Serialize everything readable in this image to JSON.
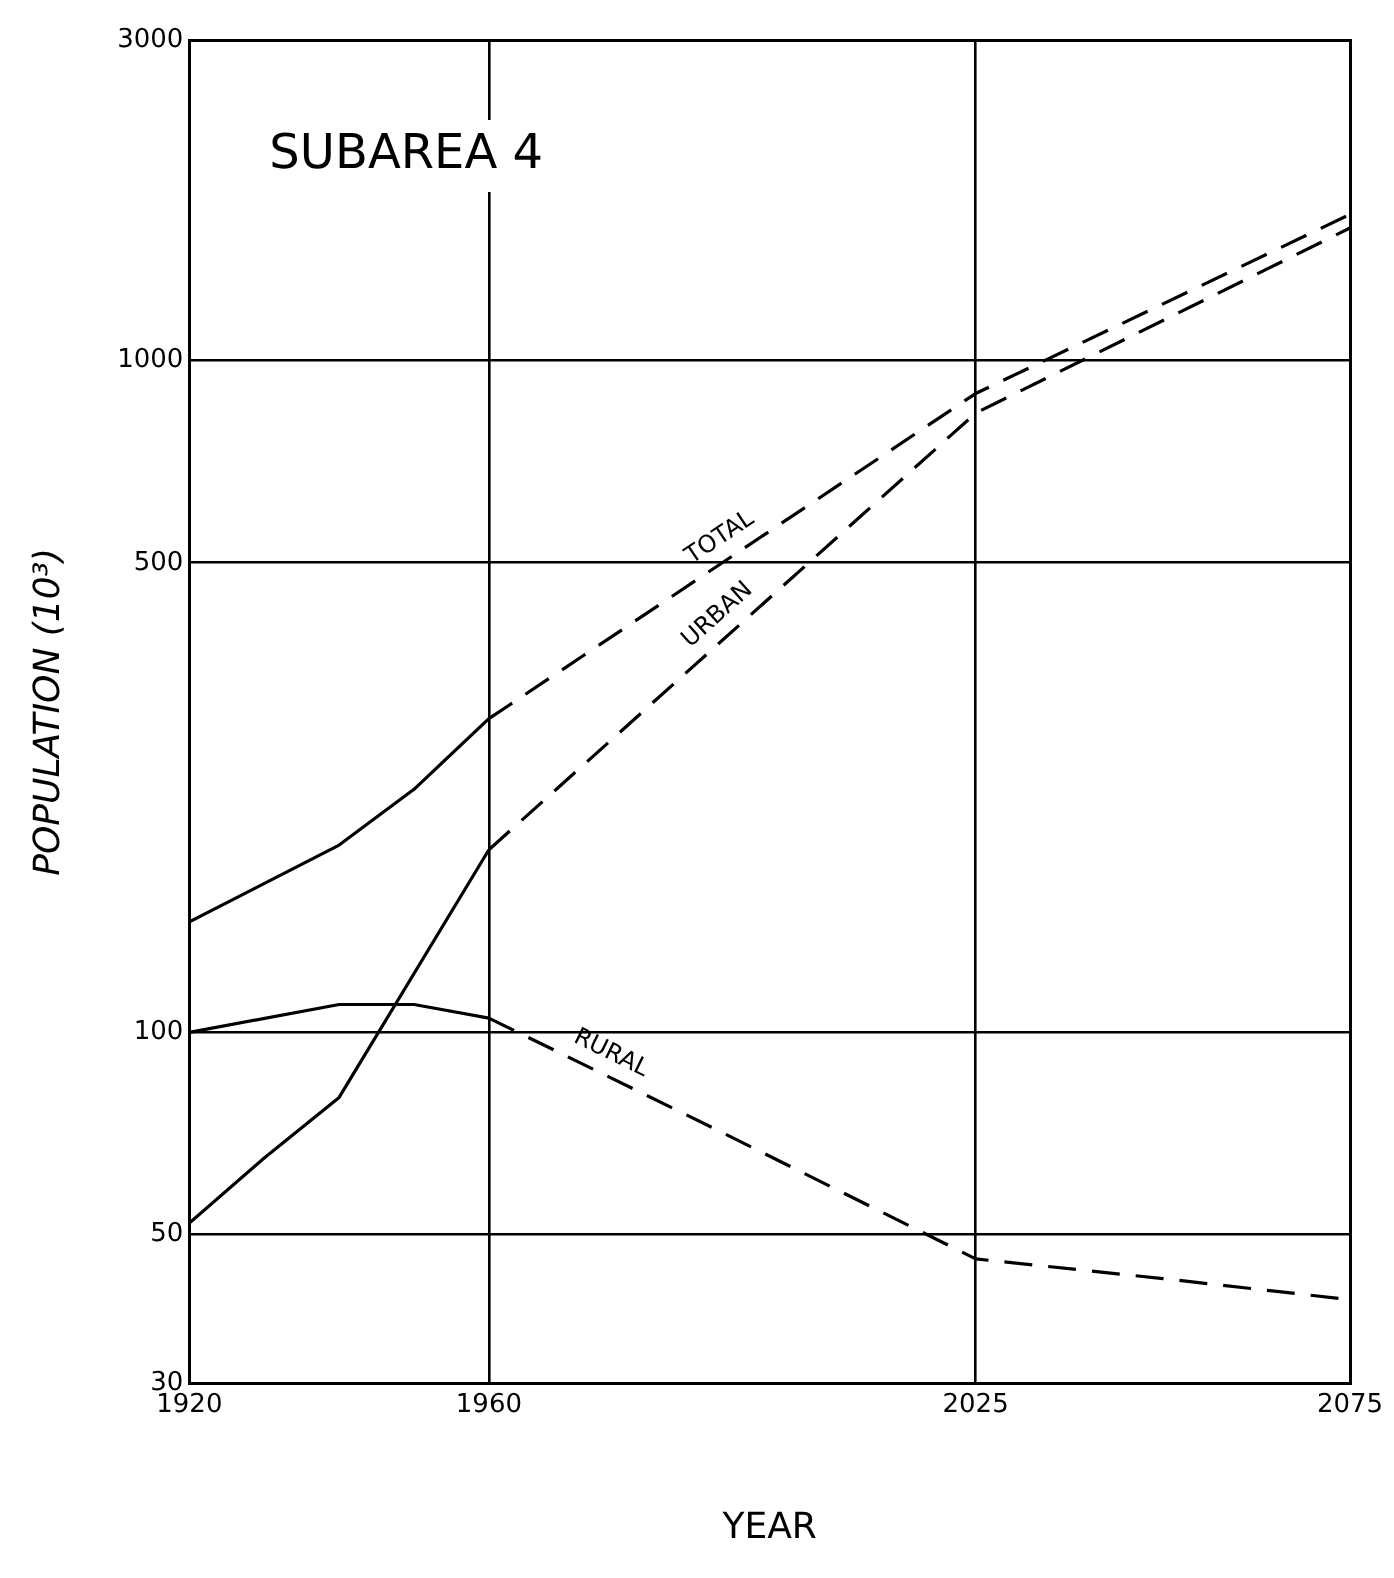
{
  "chart_data": {
    "type": "line",
    "title": "SUBAREA 4",
    "xlabel": "YEAR",
    "ylabel": "POPULATION (10³)",
    "series": [
      {
        "color": "#000000",
        "line_style": "solid",
        "x": [
          1920,
          1940,
          1950,
          1960
        ],
        "values": [
          146,
          190,
          230,
          293
        ]
      },
      {
        "name": "TOTAL",
        "color": "#000000",
        "line_style": "dashed",
        "x": [
          1960,
          2025,
          2075
        ],
        "values": [
          293,
          893,
          1650
        ]
      },
      {
        "color": "#000000",
        "line_style": "solid",
        "x": [
          1920,
          1930,
          1940,
          1960
        ],
        "values": [
          52,
          65,
          80,
          187
        ]
      },
      {
        "name": "URBAN",
        "color": "#000000",
        "line_style": "dashed",
        "x": [
          1960,
          2025,
          2075
        ],
        "values": [
          187,
          835,
          1575
        ]
      },
      {
        "color": "#000000",
        "line_style": "solid",
        "x": [
          1920,
          1940,
          1950,
          1960
        ],
        "values": [
          100,
          110,
          110,
          105
        ]
      },
      {
        "name": "RURAL",
        "color": "#000000",
        "line_style": "dashed",
        "x": [
          1960,
          1990,
          2025,
          2050,
          2075
        ],
        "values": [
          105,
          72,
          46,
          43,
          40
        ]
      }
    ],
    "log": "y",
    "xlim": [
      1920,
      2075
    ],
    "xticks": [
      1920,
      1960,
      2025,
      2075
    ],
    "ylim": [
      30,
      3000
    ],
    "yticks": [
      30,
      50,
      100,
      500,
      1000,
      3000
    ],
    "grid": true,
    "legend": false,
    "marker": "none"
  }
}
